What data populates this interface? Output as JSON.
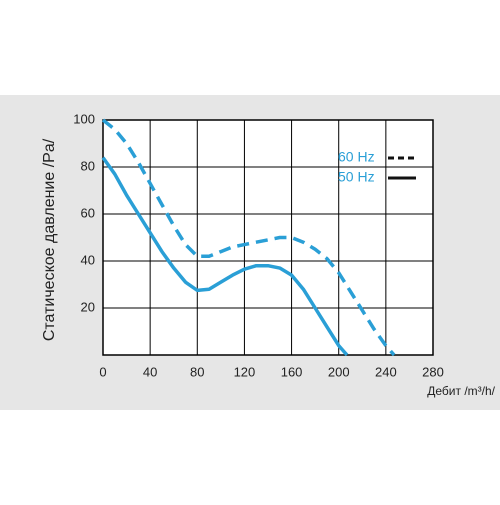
{
  "chart_data": {
    "type": "line",
    "y_label": "Статическое давление /Pa/",
    "x_label": "Дебит /m³/h/",
    "xlim": [
      0,
      280
    ],
    "xticks": [
      0,
      40,
      80,
      120,
      160,
      200,
      240,
      280
    ],
    "ylim": [
      0,
      100
    ],
    "yticks": [
      20,
      40,
      60,
      80,
      100
    ],
    "grid": true,
    "legend": "upper right",
    "series": [
      {
        "name": "60 Hz",
        "color": "#2a9fd6",
        "dash": true,
        "x": [
          0,
          10,
          20,
          30,
          40,
          50,
          60,
          70,
          80,
          90,
          100,
          110,
          120,
          130,
          140,
          150,
          160,
          170,
          180,
          190,
          200,
          210,
          220,
          230,
          240,
          247
        ],
        "values": [
          100,
          96,
          90,
          82,
          73,
          64,
          55,
          47,
          42,
          42,
          44,
          46,
          47,
          48,
          49,
          50,
          50,
          48,
          45,
          41,
          35,
          27,
          19,
          11,
          4,
          0
        ]
      },
      {
        "name": "50 Hz",
        "color": "#2a9fd6",
        "dash": false,
        "x": [
          0,
          10,
          20,
          30,
          40,
          50,
          60,
          70,
          80,
          90,
          100,
          110,
          120,
          130,
          140,
          150,
          160,
          170,
          180,
          190,
          200,
          207
        ],
        "values": [
          84,
          77,
          68,
          60,
          52,
          44,
          37,
          31,
          27.5,
          28,
          31,
          34,
          36.5,
          38,
          38,
          37,
          34,
          28,
          20,
          12,
          4,
          0
        ]
      }
    ]
  }
}
